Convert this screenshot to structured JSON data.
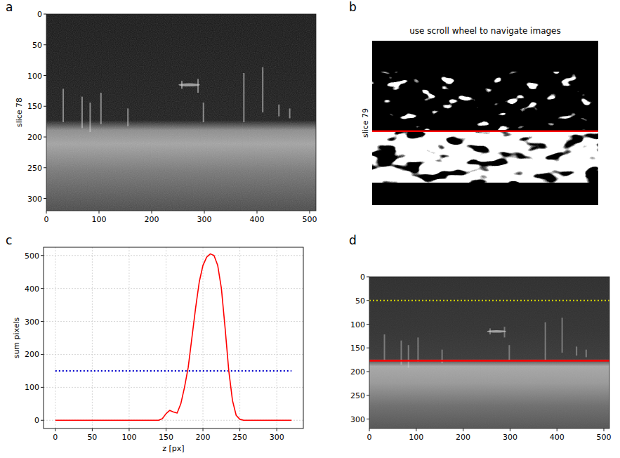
{
  "chart_data": [
    {
      "type": "image",
      "panel_label": "a",
      "ylabel": "slice 78",
      "xlim": [
        0,
        512
      ],
      "ylim": [
        320,
        0
      ],
      "xticks": [
        0,
        100,
        200,
        300,
        400,
        500
      ],
      "yticks": [
        0,
        50,
        100,
        150,
        200,
        250,
        300
      ]
    },
    {
      "type": "image",
      "panel_label": "b",
      "title": "use scroll wheel to navigate images",
      "ylabel": "slice 79",
      "xlim": [
        0,
        512
      ],
      "ylim": [
        320,
        0
      ],
      "tick_labels": false,
      "hlines": [
        {
          "y": 176,
          "color": "#ff0000",
          "line_style": "solid"
        }
      ]
    },
    {
      "type": "line",
      "panel_label": "c",
      "xlabel": "z [px]",
      "ylabel": "sum pixels",
      "xlim": [
        -16,
        336
      ],
      "ylim": [
        -25,
        525
      ],
      "xticks": [
        0,
        50,
        100,
        150,
        200,
        250,
        300
      ],
      "yticks": [
        0,
        100,
        200,
        300,
        400,
        500
      ],
      "grid": true,
      "color": "#ff0000",
      "x": [
        0,
        140,
        145,
        150,
        155,
        160,
        165,
        170,
        175,
        180,
        185,
        190,
        195,
        200,
        205,
        210,
        215,
        220,
        225,
        230,
        235,
        240,
        245,
        250,
        255,
        320
      ],
      "values": [
        0,
        0,
        5,
        20,
        30,
        25,
        22,
        50,
        100,
        160,
        250,
        340,
        420,
        470,
        495,
        505,
        500,
        470,
        400,
        280,
        150,
        60,
        15,
        3,
        0,
        0
      ],
      "hlines": [
        {
          "y": 150,
          "color": "#0000cc",
          "line_style": "dotted",
          "x": [
            0,
            320
          ]
        }
      ]
    },
    {
      "type": "image",
      "panel_label": "d",
      "xlim": [
        0,
        512
      ],
      "ylim": [
        320,
        0
      ],
      "xticks": [
        0,
        100,
        200,
        300,
        400,
        500
      ],
      "yticks": [
        0,
        50,
        100,
        150,
        200,
        250,
        300
      ],
      "hlines": [
        {
          "y": 177,
          "color": "#ff0000",
          "line_style": "solid"
        },
        {
          "y": 50,
          "color": "#d4d400",
          "line_style": "dotted"
        }
      ]
    }
  ]
}
